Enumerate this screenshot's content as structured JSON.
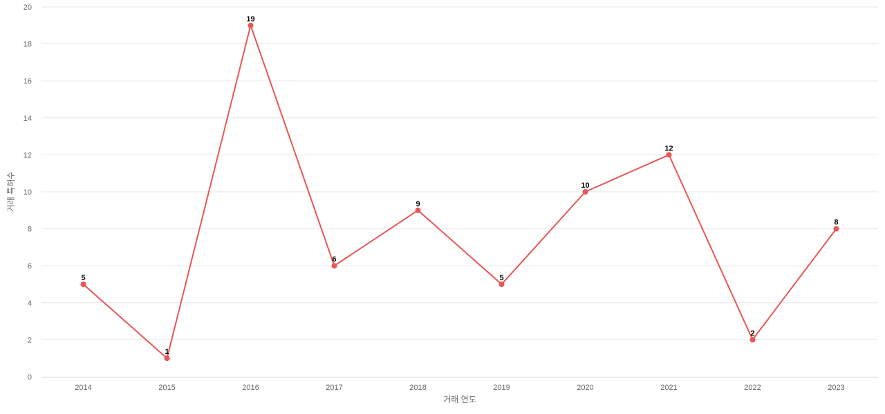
{
  "chart_data": {
    "type": "line",
    "title": "",
    "xlabel": "거래 연도",
    "ylabel": "거래 특허수",
    "categories": [
      "2014",
      "2015",
      "2016",
      "2017",
      "2018",
      "2019",
      "2020",
      "2021",
      "2022",
      "2023"
    ],
    "series": [
      {
        "values": [
          5,
          1,
          19,
          6,
          9,
          5,
          10,
          12,
          2,
          8
        ],
        "color": "#e85656"
      }
    ],
    "ylim": [
      0,
      20
    ],
    "yticks": [
      0,
      2,
      4,
      6,
      8,
      10,
      12,
      14,
      16,
      18,
      20
    ],
    "grid": true,
    "legend": "none",
    "data_labels": true
  }
}
